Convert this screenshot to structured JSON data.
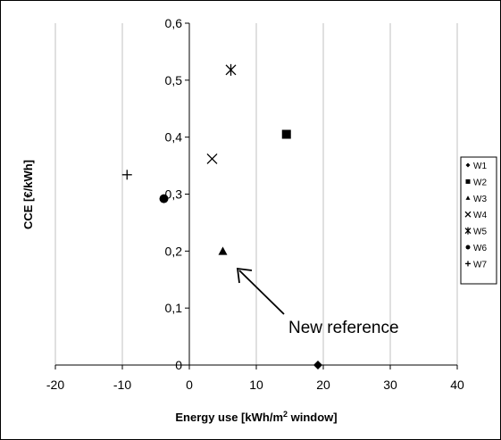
{
  "chart_data": {
    "type": "scatter",
    "xlabel": "Energy use [kWh/m",
    "xlabel_sup": "2",
    "xlabel_tail": " window]",
    "ylabel": "CCE [€/kWh]",
    "xlim": [
      -20,
      40
    ],
    "ylim": [
      0,
      0.6
    ],
    "x_ticks": [
      {
        "value": -20,
        "label": "-20"
      },
      {
        "value": -10,
        "label": "-10"
      },
      {
        "value": 0,
        "label": "0"
      },
      {
        "value": 10,
        "label": "10"
      },
      {
        "value": 20,
        "label": "20"
      },
      {
        "value": 30,
        "label": "30"
      },
      {
        "value": 40,
        "label": "40"
      }
    ],
    "y_ticks": [
      {
        "value": 0,
        "label": "0"
      },
      {
        "value": 0.1,
        "label": "0,1"
      },
      {
        "value": 0.2,
        "label": "0,2"
      },
      {
        "value": 0.3,
        "label": "0,3"
      },
      {
        "value": 0.4,
        "label": "0,4"
      },
      {
        "value": 0.5,
        "label": "0,5"
      },
      {
        "value": 0.6,
        "label": "0,6"
      }
    ],
    "grid": "vertical",
    "legend_position": "right",
    "series": [
      {
        "name": "W1",
        "marker": "diamond",
        "x": 19.2,
        "y": 0.0
      },
      {
        "name": "W2",
        "marker": "square",
        "x": 14.5,
        "y": 0.405
      },
      {
        "name": "W3",
        "marker": "triangle",
        "x": 5.0,
        "y": 0.2
      },
      {
        "name": "W4",
        "marker": "x",
        "x": 3.4,
        "y": 0.362
      },
      {
        "name": "W5",
        "marker": "asterisk",
        "x": 6.2,
        "y": 0.518
      },
      {
        "name": "W6",
        "marker": "circle",
        "x": -3.8,
        "y": 0.292
      },
      {
        "name": "W7",
        "marker": "plus",
        "x": -9.3,
        "y": 0.334
      }
    ],
    "annotation": {
      "text": "New reference",
      "target_series": "W3"
    },
    "colors": {
      "marker": "#000000",
      "grid": "#c0c0c0",
      "axis": "#000000"
    }
  }
}
